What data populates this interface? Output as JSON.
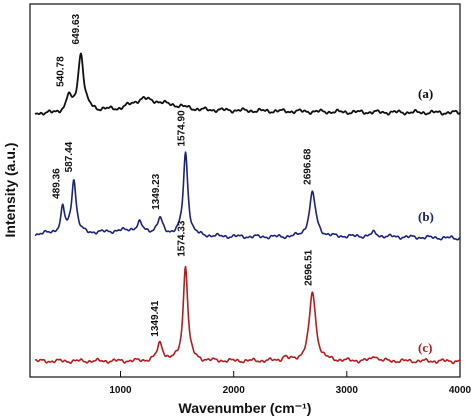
{
  "chart_data": {
    "type": "line",
    "title": "",
    "xlabel": "Wavenumber (cm⁻¹)",
    "ylabel": "Intensity (a.u.)",
    "xlim": [
      200,
      4000
    ],
    "x_ticks": [
      "1000",
      "2000",
      "3000",
      "4000"
    ],
    "y_tick_labels_shown": false,
    "grid": false,
    "legend": "series labels at right end of each trace",
    "series": [
      {
        "name": "(a)",
        "color": "#111111",
        "baseline_points": [
          [
            260,
            0.06
          ],
          [
            400,
            0.06
          ],
          [
            500,
            0.09
          ],
          [
            620,
            0.16
          ],
          [
            800,
            0.11
          ],
          [
            1000,
            0.14
          ],
          [
            1200,
            0.3
          ],
          [
            1400,
            0.22
          ],
          [
            1700,
            0.12
          ],
          [
            2200,
            0.1
          ],
          [
            3000,
            0.08
          ],
          [
            4000,
            0.07
          ]
        ],
        "peaks": [
          {
            "x": 540.78,
            "height": 0.22,
            "width": 22
          },
          {
            "x": 649.63,
            "height": 0.88,
            "width": 28
          }
        ],
        "peak_labels": [
          "540.78",
          "649.63"
        ],
        "end_label": "(a)"
      },
      {
        "name": "(b)",
        "color": "#1a237e",
        "baseline_points": [
          [
            260,
            0.07
          ],
          [
            500,
            0.1
          ],
          [
            700,
            0.08
          ],
          [
            1100,
            0.12
          ],
          [
            1400,
            0.07
          ],
          [
            1700,
            0.05
          ],
          [
            2500,
            0.04
          ],
          [
            3250,
            0.05
          ],
          [
            4000,
            0.03
          ]
        ],
        "peaks": [
          {
            "x": 489.36,
            "height": 0.26,
            "width": 18
          },
          {
            "x": 587.44,
            "height": 0.58,
            "width": 24
          },
          {
            "x": 1170,
            "height": 0.09,
            "width": 24
          },
          {
            "x": 1349.23,
            "height": 0.16,
            "width": 28
          },
          {
            "x": 1574.9,
            "height": 0.9,
            "width": 24
          },
          {
            "x": 2696.68,
            "height": 0.48,
            "width": 34
          },
          {
            "x": 3240,
            "height": 0.04,
            "width": 28
          }
        ],
        "peak_labels": [
          "489.36",
          "587.44",
          "1349.23",
          "1574.90",
          "2696.68"
        ],
        "end_label": "(b)"
      },
      {
        "name": "(c)",
        "color": "#b71c1c",
        "baseline_points": [
          [
            260,
            0.03
          ],
          [
            1000,
            0.03
          ],
          [
            1800,
            0.03
          ],
          [
            2450,
            0.03
          ],
          [
            4000,
            0.03
          ]
        ],
        "peaks": [
          {
            "x": 1349.41,
            "height": 0.18,
            "width": 30
          },
          {
            "x": 1574.33,
            "height": 1.0,
            "width": 24
          },
          {
            "x": 2450,
            "height": 0.04,
            "width": 24
          },
          {
            "x": 2696.51,
            "height": 0.72,
            "width": 34
          },
          {
            "x": 3248,
            "height": 0.06,
            "width": 24
          }
        ],
        "peak_labels": [
          "1349.41",
          "1574.33",
          "2696.51"
        ],
        "end_label": "(c)"
      }
    ]
  }
}
